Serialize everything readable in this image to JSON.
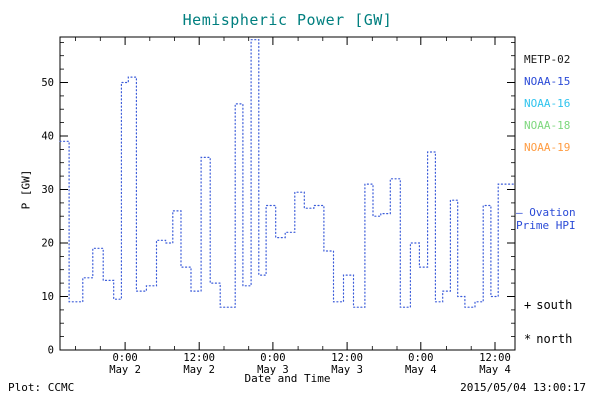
{
  "chart_data": {
    "type": "line",
    "style": "dotted-step",
    "title": "Hemispheric Power [GW]",
    "xlabel": "Date and Time",
    "ylabel": "P [GW]",
    "ylim": [
      0,
      58.5
    ],
    "yticks": [
      0,
      10,
      20,
      30,
      40,
      50
    ],
    "xticks": [
      {
        "frac": 0.143,
        "time": "0:00",
        "date": "May 2"
      },
      {
        "frac": 0.306,
        "time": "12:00",
        "date": "May 2"
      },
      {
        "frac": 0.468,
        "time": "0:00",
        "date": "May 3"
      },
      {
        "frac": 0.631,
        "time": "12:00",
        "date": "May 3"
      },
      {
        "frac": 0.793,
        "time": "0:00",
        "date": "May 4"
      },
      {
        "frac": 0.956,
        "time": "12:00",
        "date": "May 4"
      }
    ],
    "line_color": "#3a5bd9",
    "grid": false,
    "legend_position": "right-outside",
    "series": [
      {
        "name": "Ovation Prime HPI",
        "points": [
          [
            0.0,
            39
          ],
          [
            0.02,
            9
          ],
          [
            0.05,
            13.5
          ],
          [
            0.072,
            19
          ],
          [
            0.095,
            13
          ],
          [
            0.118,
            9.5
          ],
          [
            0.135,
            50
          ],
          [
            0.15,
            51
          ],
          [
            0.168,
            11
          ],
          [
            0.19,
            12
          ],
          [
            0.212,
            20.5
          ],
          [
            0.232,
            20
          ],
          [
            0.248,
            26
          ],
          [
            0.266,
            15.5
          ],
          [
            0.288,
            11
          ],
          [
            0.31,
            36
          ],
          [
            0.33,
            12.5
          ],
          [
            0.352,
            8
          ],
          [
            0.385,
            46
          ],
          [
            0.402,
            12
          ],
          [
            0.42,
            58
          ],
          [
            0.437,
            14
          ],
          [
            0.453,
            27
          ],
          [
            0.474,
            21
          ],
          [
            0.495,
            22
          ],
          [
            0.516,
            29.5
          ],
          [
            0.537,
            26.5
          ],
          [
            0.558,
            27
          ],
          [
            0.58,
            18.5
          ],
          [
            0.601,
            9
          ],
          [
            0.623,
            14
          ],
          [
            0.645,
            8
          ],
          [
            0.67,
            31
          ],
          [
            0.688,
            25
          ],
          [
            0.705,
            25.5
          ],
          [
            0.726,
            32
          ],
          [
            0.748,
            8
          ],
          [
            0.77,
            20
          ],
          [
            0.79,
            15.5
          ],
          [
            0.808,
            37
          ],
          [
            0.825,
            9
          ],
          [
            0.841,
            11
          ],
          [
            0.858,
            28
          ],
          [
            0.874,
            10
          ],
          [
            0.89,
            8
          ],
          [
            0.912,
            9
          ],
          [
            0.93,
            27
          ],
          [
            0.947,
            10
          ],
          [
            0.963,
            31
          ],
          [
            1.0,
            31
          ]
        ]
      }
    ]
  },
  "colors": {
    "title": "#007f7f",
    "axis": "#000000",
    "background": "#ffffff"
  },
  "legend": {
    "satellites": [
      {
        "label": "METP-02",
        "color": "#1a1a1a"
      },
      {
        "label": "NOAA-15",
        "color": "#2b4bd7"
      },
      {
        "label": "NOAA-16",
        "color": "#2fc4ee"
      },
      {
        "label": "NOAA-18",
        "color": "#7ed87e"
      },
      {
        "label": "NOAA-19",
        "color": "#ff9c42"
      }
    ],
    "ovation": {
      "sample": "—",
      "line1": "Ovation",
      "line2": "Prime HPI",
      "color": "#2b4bd7"
    },
    "markers": [
      {
        "symbol": "+",
        "label": "south"
      },
      {
        "symbol": "*",
        "label": "north"
      }
    ]
  },
  "footer": {
    "plot_credit": "Plot: CCMC",
    "timestamp": "2015/05/04 13:00:17"
  }
}
